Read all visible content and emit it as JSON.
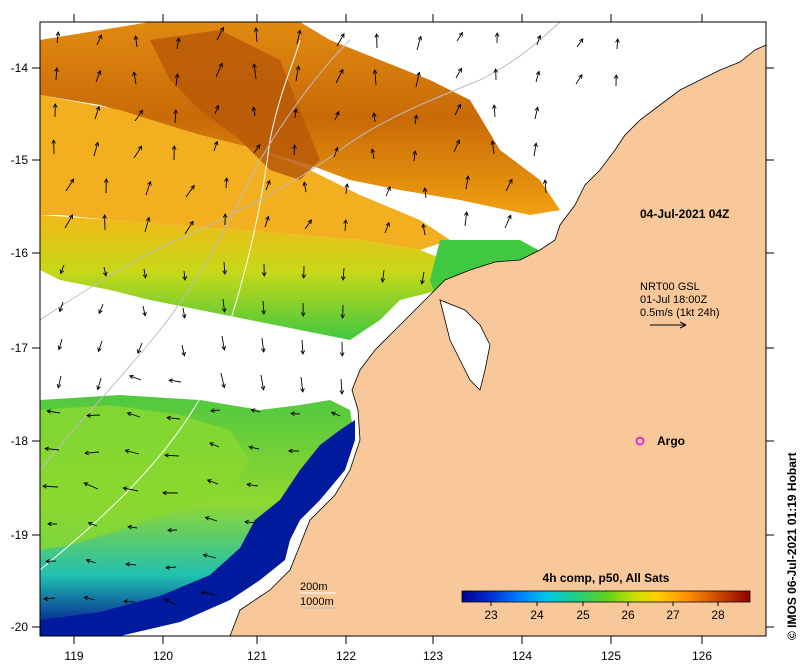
{
  "map": {
    "lon_ticks": [
      "119",
      "120",
      "121",
      "122",
      "123",
      "124",
      "125",
      "126"
    ],
    "lat_ticks": [
      "-14",
      "-15",
      "-16",
      "-17",
      "-18",
      "-19",
      "-20"
    ],
    "timestamp_label": "04-Jul-2021 04Z",
    "current_info": {
      "line1": "NRT00 GSL",
      "line2": "01-Jul 18:00Z",
      "line3": "0.5m/s (1kt 24h)"
    },
    "argo_label": "Argo",
    "contour_legend": {
      "line1": "200m",
      "line2": "1000m"
    },
    "colorbar": {
      "title": "4h comp, p50, All Sats",
      "ticks": [
        "23",
        "24",
        "25",
        "26",
        "27",
        "28"
      ]
    },
    "credit": "© IMOS 06-Jul-2021 01:19 Hobart",
    "colors": {
      "land": "#f9c89a",
      "cloud": "#ffffff",
      "argo": "#e020e0"
    }
  }
}
